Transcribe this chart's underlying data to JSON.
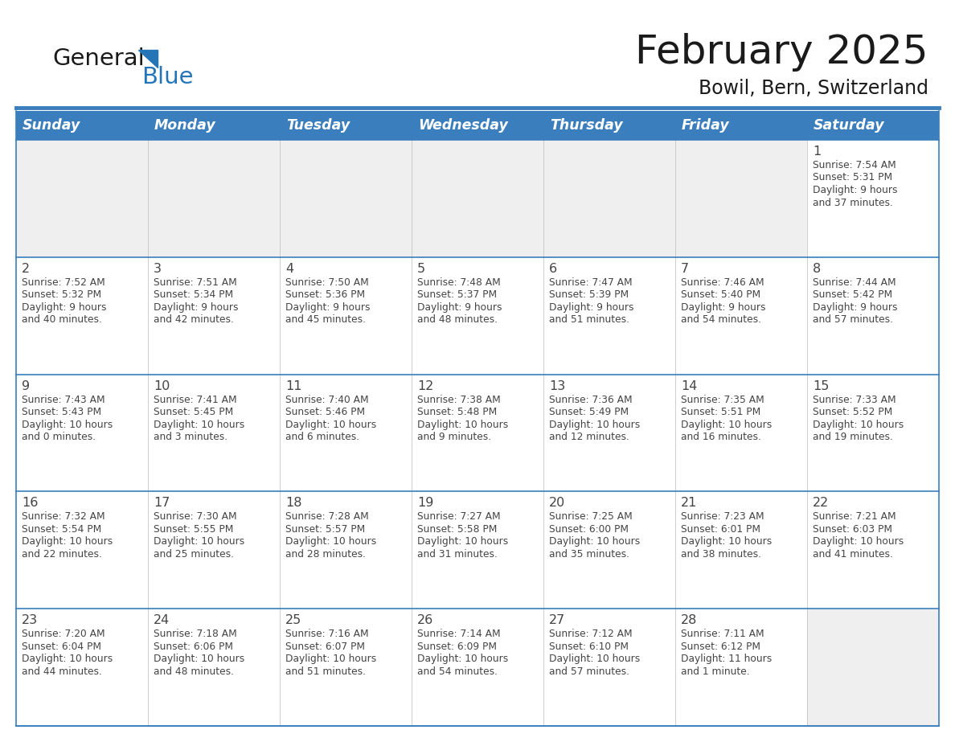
{
  "title": "February 2025",
  "subtitle": "Bowil, Bern, Switzerland",
  "header_bg": "#3A7EBD",
  "header_text": "#FFFFFF",
  "cell_bg_gray": "#EFEFEF",
  "cell_bg_white": "#FFFFFF",
  "border_color_blue": "#3A7EBD",
  "border_color_light": "#BBBBBB",
  "text_color": "#444444",
  "days_of_week": [
    "Sunday",
    "Monday",
    "Tuesday",
    "Wednesday",
    "Thursday",
    "Friday",
    "Saturday"
  ],
  "calendar_data": [
    [
      null,
      null,
      null,
      null,
      null,
      null,
      {
        "day": 1,
        "sunrise": "7:54 AM",
        "sunset": "5:31 PM",
        "daylight": "9 hours",
        "daylight2": "and 37 minutes."
      }
    ],
    [
      {
        "day": 2,
        "sunrise": "7:52 AM",
        "sunset": "5:32 PM",
        "daylight": "9 hours",
        "daylight2": "and 40 minutes."
      },
      {
        "day": 3,
        "sunrise": "7:51 AM",
        "sunset": "5:34 PM",
        "daylight": "9 hours",
        "daylight2": "and 42 minutes."
      },
      {
        "day": 4,
        "sunrise": "7:50 AM",
        "sunset": "5:36 PM",
        "daylight": "9 hours",
        "daylight2": "and 45 minutes."
      },
      {
        "day": 5,
        "sunrise": "7:48 AM",
        "sunset": "5:37 PM",
        "daylight": "9 hours",
        "daylight2": "and 48 minutes."
      },
      {
        "day": 6,
        "sunrise": "7:47 AM",
        "sunset": "5:39 PM",
        "daylight": "9 hours",
        "daylight2": "and 51 minutes."
      },
      {
        "day": 7,
        "sunrise": "7:46 AM",
        "sunset": "5:40 PM",
        "daylight": "9 hours",
        "daylight2": "and 54 minutes."
      },
      {
        "day": 8,
        "sunrise": "7:44 AM",
        "sunset": "5:42 PM",
        "daylight": "9 hours",
        "daylight2": "and 57 minutes."
      }
    ],
    [
      {
        "day": 9,
        "sunrise": "7:43 AM",
        "sunset": "5:43 PM",
        "daylight": "10 hours",
        "daylight2": "and 0 minutes."
      },
      {
        "day": 10,
        "sunrise": "7:41 AM",
        "sunset": "5:45 PM",
        "daylight": "10 hours",
        "daylight2": "and 3 minutes."
      },
      {
        "day": 11,
        "sunrise": "7:40 AM",
        "sunset": "5:46 PM",
        "daylight": "10 hours",
        "daylight2": "and 6 minutes."
      },
      {
        "day": 12,
        "sunrise": "7:38 AM",
        "sunset": "5:48 PM",
        "daylight": "10 hours",
        "daylight2": "and 9 minutes."
      },
      {
        "day": 13,
        "sunrise": "7:36 AM",
        "sunset": "5:49 PM",
        "daylight": "10 hours",
        "daylight2": "and 12 minutes."
      },
      {
        "day": 14,
        "sunrise": "7:35 AM",
        "sunset": "5:51 PM",
        "daylight": "10 hours",
        "daylight2": "and 16 minutes."
      },
      {
        "day": 15,
        "sunrise": "7:33 AM",
        "sunset": "5:52 PM",
        "daylight": "10 hours",
        "daylight2": "and 19 minutes."
      }
    ],
    [
      {
        "day": 16,
        "sunrise": "7:32 AM",
        "sunset": "5:54 PM",
        "daylight": "10 hours",
        "daylight2": "and 22 minutes."
      },
      {
        "day": 17,
        "sunrise": "7:30 AM",
        "sunset": "5:55 PM",
        "daylight": "10 hours",
        "daylight2": "and 25 minutes."
      },
      {
        "day": 18,
        "sunrise": "7:28 AM",
        "sunset": "5:57 PM",
        "daylight": "10 hours",
        "daylight2": "and 28 minutes."
      },
      {
        "day": 19,
        "sunrise": "7:27 AM",
        "sunset": "5:58 PM",
        "daylight": "10 hours",
        "daylight2": "and 31 minutes."
      },
      {
        "day": 20,
        "sunrise": "7:25 AM",
        "sunset": "6:00 PM",
        "daylight": "10 hours",
        "daylight2": "and 35 minutes."
      },
      {
        "day": 21,
        "sunrise": "7:23 AM",
        "sunset": "6:01 PM",
        "daylight": "10 hours",
        "daylight2": "and 38 minutes."
      },
      {
        "day": 22,
        "sunrise": "7:21 AM",
        "sunset": "6:03 PM",
        "daylight": "10 hours",
        "daylight2": "and 41 minutes."
      }
    ],
    [
      {
        "day": 23,
        "sunrise": "7:20 AM",
        "sunset": "6:04 PM",
        "daylight": "10 hours",
        "daylight2": "and 44 minutes."
      },
      {
        "day": 24,
        "sunrise": "7:18 AM",
        "sunset": "6:06 PM",
        "daylight": "10 hours",
        "daylight2": "and 48 minutes."
      },
      {
        "day": 25,
        "sunrise": "7:16 AM",
        "sunset": "6:07 PM",
        "daylight": "10 hours",
        "daylight2": "and 51 minutes."
      },
      {
        "day": 26,
        "sunrise": "7:14 AM",
        "sunset": "6:09 PM",
        "daylight": "10 hours",
        "daylight2": "and 54 minutes."
      },
      {
        "day": 27,
        "sunrise": "7:12 AM",
        "sunset": "6:10 PM",
        "daylight": "10 hours",
        "daylight2": "and 57 minutes."
      },
      {
        "day": 28,
        "sunrise": "7:11 AM",
        "sunset": "6:12 PM",
        "daylight": "11 hours",
        "daylight2": "and 1 minute."
      },
      null
    ]
  ],
  "logo_color_general": "#1a1a1a",
  "logo_color_blue": "#2475B8",
  "fig_width": 11.88,
  "fig_height": 9.18,
  "dpi": 100
}
